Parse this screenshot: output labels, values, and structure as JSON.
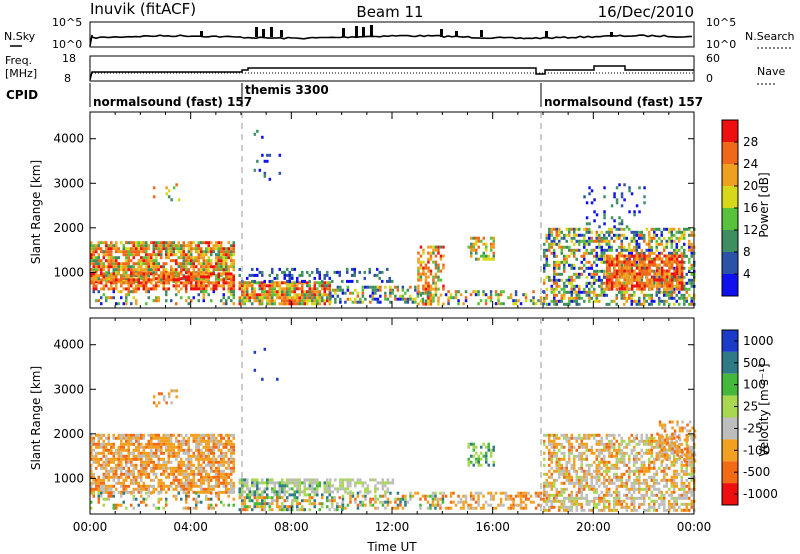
{
  "header": {
    "station": "Inuvik (fitACF)",
    "beam": "Beam 11",
    "date": "16/Dec/2010"
  },
  "top_panels": {
    "nsky_label": "N.Sky",
    "nsky_ticks": [
      "10^5",
      "10^0"
    ],
    "nsearch_label": "N.Search",
    "nsearch_ticks": [
      "10^5",
      "10^0"
    ],
    "freq_label": "Freq.",
    "freq_unit": "[MHz]",
    "freq_ticks": [
      "18",
      "8"
    ],
    "nave_label": "Nave",
    "nave_ticks": [
      "60",
      "0"
    ],
    "cpid_label": "CPID",
    "cpid_segments": [
      {
        "label": "normalsound (fast) 157"
      },
      {
        "label": "themis 3300"
      },
      {
        "label": "normalsound (fast) 157"
      }
    ]
  },
  "chart_data": [
    {
      "type": "heatmap",
      "title": "",
      "xlabel": "Time UT",
      "ylabel": "Slant Range [km]",
      "x_ticks": [
        "00:00",
        "04:00",
        "08:00",
        "12:00",
        "16:00",
        "20:00",
        "00:00"
      ],
      "y_ticks": [
        "1000",
        "2000",
        "3000",
        "4000"
      ],
      "colorbar": {
        "label": "Power [dB]",
        "tick_labels": [
          "4",
          "8",
          "12",
          "16",
          "20",
          "24",
          "28"
        ],
        "colors": [
          "#1010ee",
          "#2c52a8",
          "#3e8e62",
          "#58c23a",
          "#d8d81a",
          "#f0a020",
          "#f06818",
          "#ee1010"
        ]
      },
      "mode_boundaries_ut": [
        "05:50",
        "18:00"
      ]
    },
    {
      "type": "heatmap",
      "title": "",
      "xlabel": "Time UT",
      "ylabel": "Slant Range [km]",
      "x_ticks": [
        "00:00",
        "04:00",
        "08:00",
        "12:00",
        "16:00",
        "20:00",
        "00:00"
      ],
      "y_ticks": [
        "1000",
        "2000",
        "3000",
        "4000"
      ],
      "colorbar": {
        "label": "Velocity [m s⁻¹]",
        "tick_labels": [
          "1000",
          "500",
          "100",
          "25",
          "-25",
          "-100",
          "-500",
          "-1000"
        ],
        "colors": [
          "#1a3cc8",
          "#2f7a86",
          "#44b83a",
          "#a8d850",
          "#bdbdbd",
          "#f2a020",
          "#f26a14",
          "#ee1010"
        ]
      },
      "mode_boundaries_ut": [
        "05:50",
        "18:00"
      ]
    }
  ]
}
